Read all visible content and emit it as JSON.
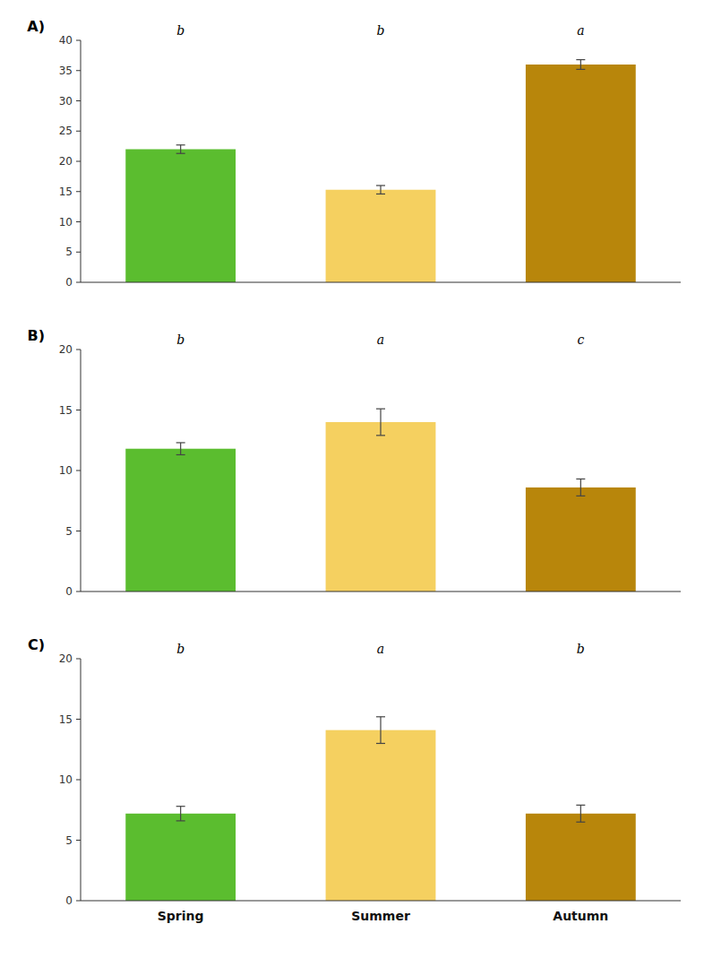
{
  "chart_data": [
    {
      "type": "bar",
      "title": "A)",
      "categories": [
        "Spring",
        "Summer",
        "Autumn"
      ],
      "values": [
        22.0,
        15.3,
        36.0
      ],
      "errors": [
        0.7,
        0.7,
        0.8
      ],
      "annotations": [
        "b",
        "b",
        "a"
      ],
      "colors": [
        "#5BBD2F",
        "#F5D060",
        "#B8860B"
      ],
      "ylim": [
        0,
        40
      ],
      "yticks": [
        0,
        5,
        10,
        15,
        20,
        25,
        30,
        35,
        40
      ],
      "grid": false,
      "tick_labels": "y"
    },
    {
      "type": "bar",
      "title": "B)",
      "categories": [
        "Spring",
        "Summer",
        "Autumn"
      ],
      "values": [
        11.8,
        14.0,
        8.6
      ],
      "errors": [
        0.5,
        1.1,
        0.7
      ],
      "annotations": [
        "b",
        "a",
        "c"
      ],
      "colors": [
        "#5BBD2F",
        "#F5D060",
        "#B8860B"
      ],
      "ylim": [
        0,
        20
      ],
      "yticks": [
        0,
        5,
        10,
        15,
        20
      ],
      "grid": false,
      "tick_labels": "y"
    },
    {
      "type": "bar",
      "title": "C)",
      "categories": [
        "Spring",
        "Summer",
        "Autumn"
      ],
      "values": [
        7.2,
        14.1,
        7.2
      ],
      "errors": [
        0.6,
        1.1,
        0.7
      ],
      "annotations": [
        "b",
        "a",
        "b"
      ],
      "colors": [
        "#5BBD2F",
        "#F5D060",
        "#B8860B"
      ],
      "ylim": [
        0,
        20
      ],
      "yticks": [
        0,
        5,
        10,
        15,
        20
      ],
      "grid": false
    }
  ]
}
